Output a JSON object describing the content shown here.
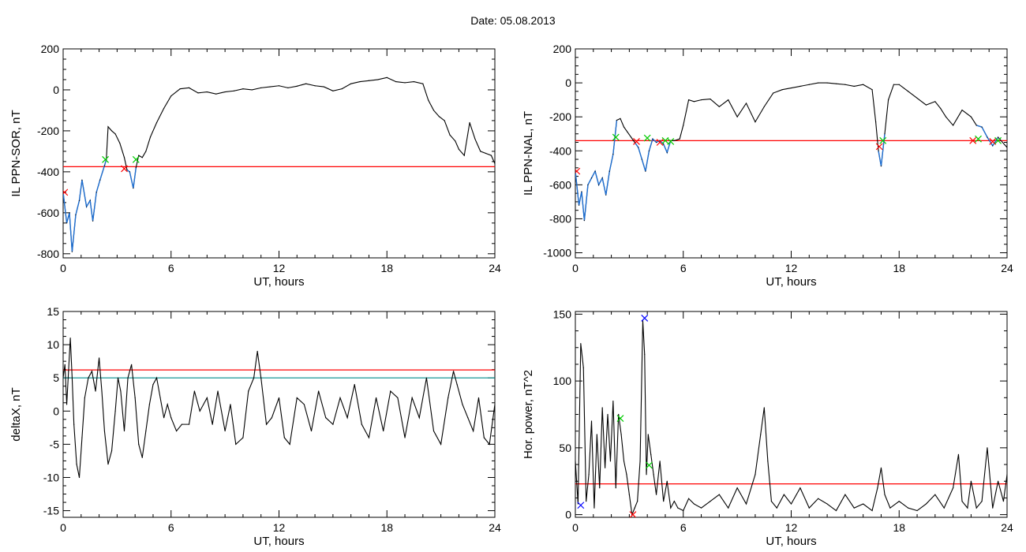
{
  "header": {
    "date_label": "Date:  05.08.2013"
  },
  "chart_data": [
    {
      "type": "line",
      "ylabel": "IL PPN-SOR, nT",
      "xlabel": "UT, hours",
      "xlim": [
        0,
        24
      ],
      "ylim": [
        -820,
        200
      ],
      "xticks": [
        0,
        6,
        12,
        18,
        24
      ],
      "yticks": [
        -800,
        -600,
        -400,
        -200,
        0,
        200
      ],
      "threshold": {
        "value": -375,
        "color": "#ff0000"
      },
      "x": [
        0,
        0.2,
        0.35,
        0.5,
        0.7,
        0.9,
        1.05,
        1.3,
        1.5,
        1.65,
        1.85,
        2.05,
        2.3,
        2.4,
        2.5,
        2.7,
        2.9,
        3.15,
        3.4,
        3.55,
        3.7,
        3.9,
        4.05,
        4.2,
        4.4,
        4.6,
        4.85,
        5.2,
        5.6,
        6.0,
        6.5,
        7.0,
        7.5,
        8.0,
        8.5,
        9.0,
        9.5,
        10.0,
        10.5,
        11.0,
        11.5,
        12.0,
        12.5,
        13.0,
        13.5,
        14.0,
        14.5,
        15.0,
        15.5,
        16.0,
        16.5,
        17.0,
        17.5,
        18.0,
        18.5,
        19.0,
        19.5,
        20.0,
        20.3,
        20.6,
        20.9,
        21.2,
        21.5,
        21.8,
        22.0,
        22.3,
        22.6,
        22.9,
        23.2,
        23.5,
        23.8,
        24.0
      ],
      "y": [
        -500,
        -650,
        -600,
        -790,
        -610,
        -540,
        -440,
        -570,
        -540,
        -640,
        -500,
        -440,
        -370,
        -340,
        -180,
        -200,
        -215,
        -260,
        -330,
        -390,
        -400,
        -480,
        -380,
        -320,
        -330,
        -300,
        -230,
        -160,
        -90,
        -30,
        5,
        10,
        -15,
        -10,
        -20,
        -10,
        -5,
        5,
        0,
        10,
        15,
        20,
        10,
        18,
        30,
        20,
        15,
        -5,
        5,
        30,
        40,
        45,
        50,
        60,
        40,
        35,
        40,
        30,
        -50,
        -100,
        -130,
        -150,
        -220,
        -250,
        -290,
        -320,
        -160,
        -240,
        -300,
        -310,
        -320,
        -360
      ],
      "blue_intervals": [
        [
          0,
          2.45
        ],
        [
          3.55,
          4.1
        ]
      ],
      "markers": [
        {
          "x": 0.08,
          "y": -500,
          "kind": "red"
        },
        {
          "x": 2.35,
          "y": -340,
          "kind": "green"
        },
        {
          "x": 3.4,
          "y": -385,
          "kind": "red"
        },
        {
          "x": 4.05,
          "y": -340,
          "kind": "green"
        }
      ]
    },
    {
      "type": "line",
      "ylabel": "IL PPN-NAL, nT",
      "xlabel": "UT, hours",
      "xlim": [
        0,
        24
      ],
      "ylim": [
        -1030,
        200
      ],
      "xticks": [
        0,
        6,
        12,
        18,
        24
      ],
      "yticks": [
        -1000,
        -800,
        -600,
        -400,
        -200,
        0,
        200
      ],
      "threshold": {
        "value": -340,
        "color": "#ff0000"
      },
      "x": [
        0,
        0.2,
        0.35,
        0.5,
        0.7,
        0.9,
        1.1,
        1.3,
        1.5,
        1.7,
        1.9,
        2.1,
        2.2,
        2.3,
        2.5,
        2.7,
        2.9,
        3.1,
        3.3,
        3.5,
        3.7,
        3.9,
        4.1,
        4.3,
        4.5,
        4.7,
        4.9,
        5.1,
        5.3,
        5.5,
        5.8,
        6.0,
        6.3,
        6.6,
        7.0,
        7.5,
        8.0,
        8.5,
        9.0,
        9.5,
        10.0,
        10.5,
        11.0,
        11.5,
        12.0,
        12.5,
        13.0,
        13.5,
        14.0,
        14.5,
        15.0,
        15.5,
        16.0,
        16.5,
        16.7,
        16.85,
        17.0,
        17.2,
        17.4,
        17.7,
        18.0,
        18.5,
        19.0,
        19.5,
        20.0,
        20.3,
        20.6,
        21.0,
        21.5,
        22.0,
        22.3,
        22.6,
        22.9,
        23.2,
        23.5,
        24.0
      ],
      "y": [
        -520,
        -720,
        -640,
        -810,
        -600,
        -560,
        -520,
        -600,
        -560,
        -660,
        -520,
        -420,
        -320,
        -220,
        -210,
        -260,
        -290,
        -320,
        -350,
        -380,
        -450,
        -520,
        -400,
        -330,
        -350,
        -340,
        -360,
        -410,
        -340,
        -340,
        -330,
        -250,
        -100,
        -110,
        -100,
        -95,
        -140,
        -100,
        -200,
        -120,
        -230,
        -140,
        -60,
        -40,
        -30,
        -20,
        -10,
        0,
        0,
        -5,
        -10,
        -20,
        -10,
        -40,
        -230,
        -400,
        -490,
        -300,
        -100,
        -10,
        -10,
        -50,
        -90,
        -130,
        -110,
        -150,
        -200,
        -250,
        -160,
        -200,
        -250,
        -260,
        -320,
        -370,
        -320,
        -380
      ],
      "blue_intervals": [
        [
          0,
          2.3
        ],
        [
          3.2,
          5.3
        ],
        [
          16.8,
          17.3
        ],
        [
          22.2,
          23.8
        ]
      ],
      "markers": [
        {
          "x": 0.08,
          "y": -520,
          "kind": "red"
        },
        {
          "x": 2.25,
          "y": -320,
          "kind": "green"
        },
        {
          "x": 3.4,
          "y": -345,
          "kind": "red"
        },
        {
          "x": 4.0,
          "y": -325,
          "kind": "green"
        },
        {
          "x": 4.7,
          "y": -350,
          "kind": "red"
        },
        {
          "x": 5.0,
          "y": -340,
          "kind": "green"
        },
        {
          "x": 5.3,
          "y": -345,
          "kind": "green"
        },
        {
          "x": 16.9,
          "y": -375,
          "kind": "red"
        },
        {
          "x": 17.1,
          "y": -340,
          "kind": "green"
        },
        {
          "x": 22.1,
          "y": -340,
          "kind": "red"
        },
        {
          "x": 22.4,
          "y": -330,
          "kind": "green"
        },
        {
          "x": 23.2,
          "y": -345,
          "kind": "red"
        },
        {
          "x": 23.5,
          "y": -340,
          "kind": "green"
        }
      ]
    },
    {
      "type": "line",
      "ylabel": "deltaX, nT",
      "xlabel": "UT, hours",
      "xlim": [
        0,
        24
      ],
      "ylim": [
        -16,
        15
      ],
      "xticks": [
        0,
        6,
        12,
        18,
        24
      ],
      "yticks": [
        -15,
        -10,
        -5,
        0,
        5,
        10,
        15
      ],
      "thresholds": [
        {
          "value": 6.2,
          "color": "#ff0000"
        },
        {
          "value": 5.0,
          "color": "#008b8b"
        }
      ],
      "x": [
        0,
        0.1,
        0.2,
        0.3,
        0.4,
        0.5,
        0.6,
        0.75,
        0.9,
        1.05,
        1.2,
        1.4,
        1.6,
        1.8,
        2.0,
        2.15,
        2.3,
        2.5,
        2.7,
        2.9,
        3.05,
        3.2,
        3.4,
        3.6,
        3.8,
        4.0,
        4.2,
        4.4,
        4.6,
        4.8,
        5.0,
        5.2,
        5.4,
        5.6,
        5.8,
        6.0,
        6.3,
        6.6,
        7.0,
        7.3,
        7.6,
        8.0,
        8.3,
        8.6,
        9.0,
        9.3,
        9.6,
        10.0,
        10.3,
        10.6,
        10.8,
        11.0,
        11.3,
        11.6,
        12.0,
        12.3,
        12.6,
        13.0,
        13.4,
        13.8,
        14.2,
        14.6,
        15.0,
        15.4,
        15.8,
        16.2,
        16.6,
        17.0,
        17.4,
        17.8,
        18.2,
        18.6,
        19.0,
        19.4,
        19.8,
        20.2,
        20.6,
        21.0,
        21.4,
        21.7,
        21.9,
        22.2,
        22.5,
        22.8,
        23.1,
        23.4,
        23.7,
        24.0
      ],
      "y": [
        5,
        7,
        1,
        6,
        11,
        5,
        -2,
        -8,
        -10,
        -4,
        2,
        5,
        6,
        3,
        8,
        3,
        -3,
        -8,
        -6,
        0,
        5,
        3,
        -3,
        5,
        7,
        2,
        -5,
        -7,
        -3,
        1,
        4,
        5,
        2,
        -1,
        1,
        -1,
        -3,
        -2,
        -2,
        3,
        0,
        2,
        -2,
        3,
        -3,
        1,
        -5,
        -4,
        3,
        5,
        9,
        5,
        -2,
        -1,
        2,
        -4,
        -5,
        2,
        1,
        -3,
        3,
        -1,
        -2,
        2,
        -1,
        4,
        -2,
        -4,
        2,
        -3,
        3,
        2,
        -4,
        2,
        -1,
        5,
        -3,
        -5,
        2,
        6,
        4,
        1,
        -1,
        -3,
        2,
        -4,
        -5,
        1
      ]
    },
    {
      "type": "line",
      "ylabel": "Hor. power, nT^2",
      "xlabel": "UT, hours",
      "xlim": [
        0,
        24
      ],
      "ylim": [
        -2,
        152
      ],
      "xticks": [
        0,
        6,
        12,
        18,
        24
      ],
      "yticks": [
        0,
        50,
        100,
        150
      ],
      "threshold": {
        "value": 23,
        "color": "#ff0000"
      },
      "x": [
        0,
        0.15,
        0.3,
        0.45,
        0.6,
        0.75,
        0.9,
        1.05,
        1.2,
        1.35,
        1.5,
        1.65,
        1.8,
        1.95,
        2.1,
        2.25,
        2.4,
        2.55,
        2.7,
        2.85,
        3.0,
        3.15,
        3.3,
        3.45,
        3.6,
        3.75,
        3.85,
        3.95,
        4.05,
        4.2,
        4.35,
        4.5,
        4.7,
        4.9,
        5.1,
        5.3,
        5.5,
        5.7,
        6.0,
        6.3,
        6.6,
        7.0,
        7.5,
        8.0,
        8.5,
        9.0,
        9.5,
        10.0,
        10.3,
        10.5,
        10.7,
        10.9,
        11.2,
        11.6,
        12.0,
        12.5,
        13.0,
        13.5,
        14.0,
        14.5,
        15.0,
        15.5,
        16.0,
        16.5,
        16.8,
        17.0,
        17.2,
        17.5,
        18.0,
        18.5,
        19.0,
        19.5,
        20.0,
        20.5,
        21.0,
        21.3,
        21.5,
        21.8,
        22.0,
        22.3,
        22.6,
        22.9,
        23.2,
        23.5,
        23.8,
        24.0
      ],
      "y": [
        40,
        8,
        128,
        110,
        10,
        30,
        70,
        5,
        60,
        20,
        80,
        35,
        75,
        40,
        85,
        20,
        75,
        60,
        40,
        30,
        15,
        0,
        5,
        10,
        40,
        145,
        120,
        30,
        60,
        45,
        30,
        15,
        40,
        10,
        25,
        5,
        10,
        5,
        3,
        12,
        8,
        5,
        10,
        15,
        5,
        20,
        8,
        30,
        60,
        80,
        40,
        10,
        5,
        15,
        8,
        20,
        5,
        12,
        8,
        3,
        15,
        5,
        8,
        3,
        20,
        35,
        15,
        5,
        10,
        5,
        3,
        8,
        15,
        5,
        20,
        45,
        10,
        5,
        25,
        5,
        10,
        50,
        5,
        25,
        10,
        30
      ],
      "markers": [
        {
          "x": 0.3,
          "y": 7,
          "kind": "blue"
        },
        {
          "x": 2.5,
          "y": 72,
          "kind": "green"
        },
        {
          "x": 3.2,
          "y": 0,
          "kind": "red"
        },
        {
          "x": 3.85,
          "y": 147,
          "kind": "blue"
        },
        {
          "x": 4.1,
          "y": 37,
          "kind": "green"
        }
      ]
    }
  ]
}
